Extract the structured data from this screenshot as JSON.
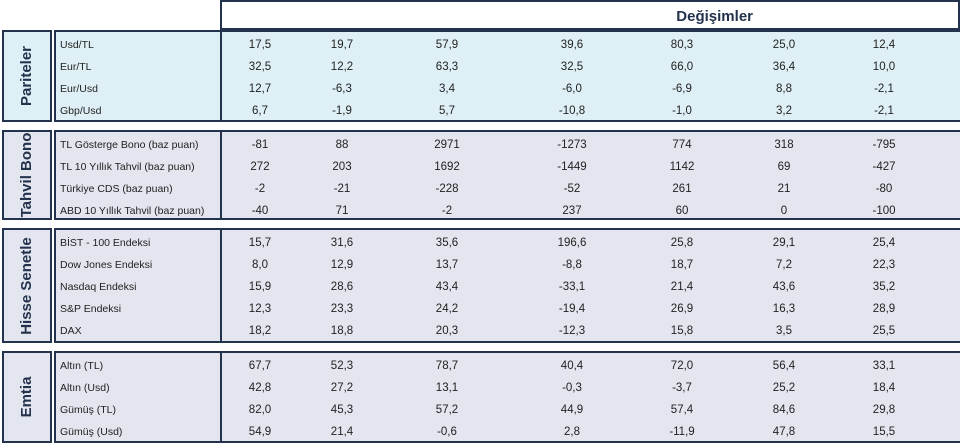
{
  "header": {
    "title": "Değişimler"
  },
  "sections": [
    {
      "label": "Pariteler",
      "rows": [
        {
          "name": "Usd/TL",
          "values": [
            "17,5",
            "19,7",
            "57,9",
            "39,6",
            "80,3",
            "25,0",
            "12,4"
          ]
        },
        {
          "name": "Eur/TL",
          "values": [
            "32,5",
            "12,2",
            "63,3",
            "32,5",
            "66,0",
            "36,4",
            "10,0"
          ]
        },
        {
          "name": "Eur/Usd",
          "values": [
            "12,7",
            "-6,3",
            "3,4",
            "-6,0",
            "-6,9",
            "8,8",
            "-2,1"
          ]
        },
        {
          "name": "Gbp/Usd",
          "values": [
            "6,7",
            "-1,9",
            "5,7",
            "-10,8",
            "-1,0",
            "3,2",
            "-2,1"
          ]
        }
      ]
    },
    {
      "label": "Tahvil Bono",
      "rows": [
        {
          "name": "TL Gösterge Bono (baz puan)",
          "values": [
            "-81",
            "88",
            "2971",
            "-1273",
            "774",
            "318",
            "-795"
          ]
        },
        {
          "name": "TL 10 Yıllık Tahvil (baz puan)",
          "values": [
            "272",
            "203",
            "1692",
            "-1449",
            "1142",
            "69",
            "-427"
          ]
        },
        {
          "name": "Türkiye CDS (baz puan)",
          "values": [
            "-2",
            "-21",
            "-228",
            "-52",
            "261",
            "21",
            "-80"
          ]
        },
        {
          "name": "ABD 10 Yıllık Tahvil  (baz puan)",
          "values": [
            "-40",
            "71",
            "-2",
            "237",
            "60",
            "0",
            "-100"
          ]
        }
      ]
    },
    {
      "label": "Hisse Senetle",
      "rows": [
        {
          "name": "BİST - 100 Endeksi",
          "values": [
            "15,7",
            "31,6",
            "35,6",
            "196,6",
            "25,8",
            "29,1",
            "25,4"
          ]
        },
        {
          "name": "Dow Jones Endeksi",
          "values": [
            "8,0",
            "12,9",
            "13,7",
            "-8,8",
            "18,7",
            "7,2",
            "22,3"
          ]
        },
        {
          "name": "Nasdaq Endeksi",
          "values": [
            "15,9",
            "28,6",
            "43,4",
            "-33,1",
            "21,4",
            "43,6",
            "35,2"
          ]
        },
        {
          "name": "S&P Endeksi",
          "values": [
            "12,3",
            "23,3",
            "24,2",
            "-19,4",
            "26,9",
            "16,3",
            "28,9"
          ]
        },
        {
          "name": "DAX",
          "values": [
            "18,2",
            "18,8",
            "20,3",
            "-12,3",
            "15,8",
            "3,5",
            "25,5"
          ]
        }
      ]
    },
    {
      "label": "Emtia",
      "rows": [
        {
          "name": "Altın (TL)",
          "values": [
            "67,7",
            "52,3",
            "78,7",
            "40,4",
            "72,0",
            "56,4",
            "33,1"
          ]
        },
        {
          "name": "Altın (Usd)",
          "values": [
            "42,8",
            "27,2",
            "13,1",
            "-0,3",
            "-3,7",
            "25,2",
            "18,4"
          ]
        },
        {
          "name": "Gümüş (TL)",
          "values": [
            "82,0",
            "45,3",
            "57,2",
            "44,9",
            "57,4",
            "84,6",
            "29,8"
          ]
        },
        {
          "name": "Gümüş (Usd)",
          "values": [
            "54,9",
            "21,4",
            "-0,6",
            "2,8",
            "-11,9",
            "47,8",
            "15,5"
          ]
        }
      ]
    }
  ],
  "colors": {
    "border": "#23324d",
    "pariteler_bg": "#def0f5",
    "tahvil_bg": "#e3e6ef",
    "hisse_bg": "#e3e6ef",
    "emtia_bg": "#e3e6ef"
  }
}
